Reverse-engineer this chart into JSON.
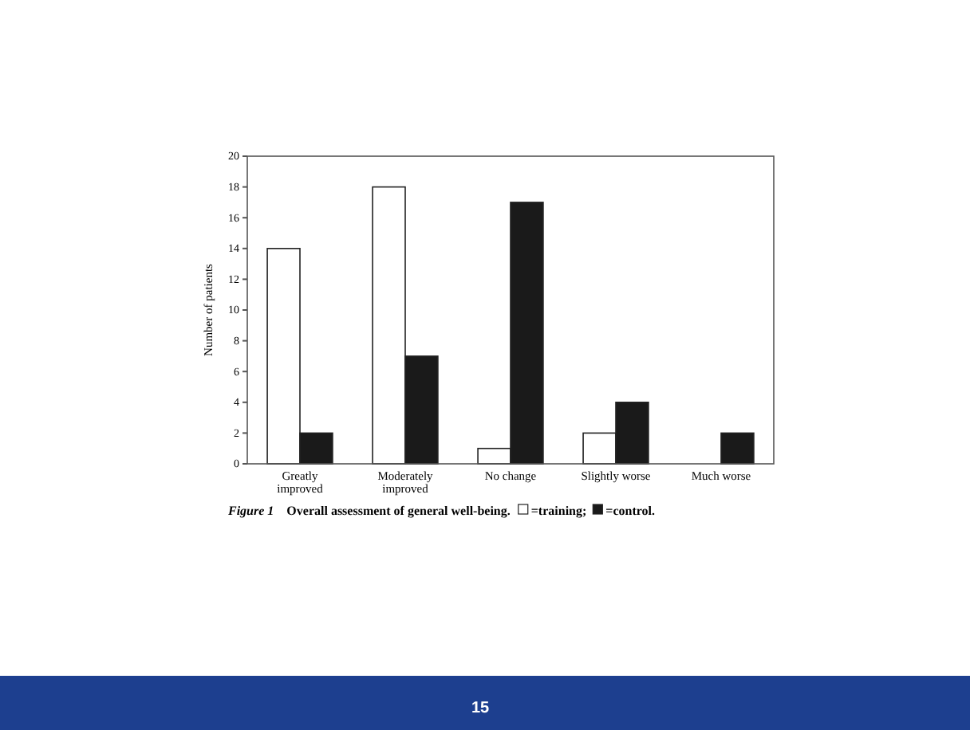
{
  "chart_data": {
    "type": "bar",
    "title": "Figure 1 Overall assessment of general well-being.",
    "ylabel": "Number of patients",
    "categories": [
      "Greatly improved",
      "Moderately improved",
      "No change",
      "Slightly worse",
      "Much worse"
    ],
    "series": [
      {
        "name": "=training;",
        "color": "#ffffff",
        "values": [
          14,
          18,
          1,
          2,
          0
        ]
      },
      {
        "name": "=control.",
        "color": "#1a1a1a",
        "values": [
          2,
          7,
          17,
          4,
          2
        ]
      }
    ],
    "ylim": [
      0,
      20
    ],
    "yticks": [
      0,
      2,
      4,
      6,
      8,
      10,
      12,
      14,
      16,
      18,
      20
    ],
    "grid": false,
    "legend": "bottom",
    "annotations": [
      "15"
    ]
  }
}
